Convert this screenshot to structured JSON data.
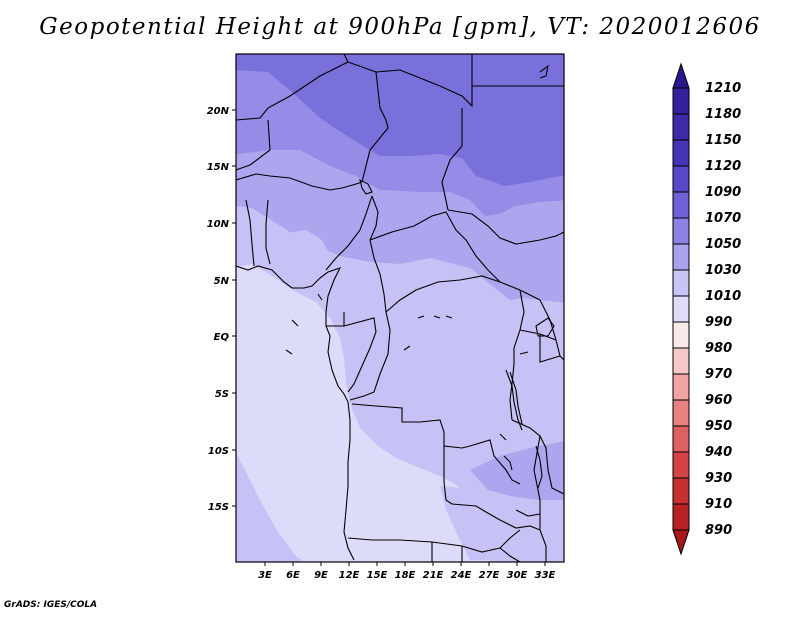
{
  "title": "Geopotential Height at 900hPa [gpm], VT: 2020012606",
  "credit": "GrADS: IGES/COLA",
  "lat_labels": [
    "20N",
    "15N",
    "10N",
    "5N",
    "EQ",
    "5S",
    "10S",
    "15S"
  ],
  "lon_labels": [
    "3E",
    "6E",
    "9E",
    "12E",
    "15E",
    "18E",
    "21E",
    "24E",
    "27E",
    "30E",
    "33E"
  ],
  "colorbar": {
    "levels": [
      "1210",
      "1180",
      "1150",
      "1120",
      "1090",
      "1070",
      "1050",
      "1030",
      "1010",
      "990",
      "980",
      "970",
      "960",
      "950",
      "940",
      "930",
      "910",
      "890"
    ],
    "colors": [
      "#2a1890",
      "#33209c",
      "#3c2aa8",
      "#4634b6",
      "#5648c8",
      "#6e62d8",
      "#8a82e4",
      "#a8a2ee",
      "#c8c4f6",
      "#e0ddfa",
      "#fbe8e8",
      "#f6c8c8",
      "#f0a4a4",
      "#e88282",
      "#de6060",
      "#d44444",
      "#c83030",
      "#b82222",
      "#a81818"
    ]
  },
  "fill_colors": {
    "z1090": "#7a70dc",
    "z1070": "#948ce6",
    "z1050": "#aba6ee",
    "z1030": "#c6c2f5",
    "z1010": "#dcdcfa"
  }
}
